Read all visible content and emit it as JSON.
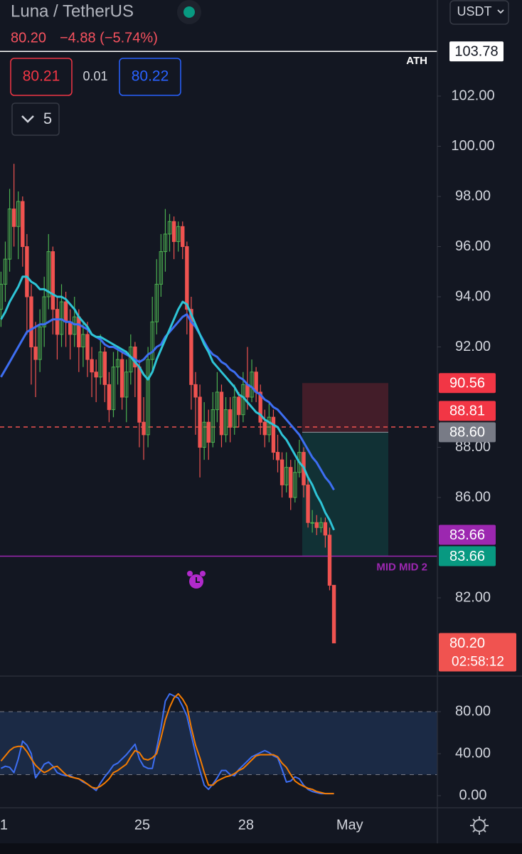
{
  "header": {
    "symbol": "Luna / TetherUS",
    "price": "80.20",
    "change": "−4.88 (−5.74%)",
    "bid": "80.21",
    "spread": "0.01",
    "ask": "80.22",
    "indicators": "5",
    "currency": "USDT"
  },
  "chart_data": [
    {
      "type": "candlestick",
      "up_color": "#4caf50",
      "down_color": "#ef5350",
      "categories": [
        "1",
        null,
        null,
        null,
        null,
        null,
        null,
        null,
        null,
        null,
        null,
        null,
        null,
        null,
        null,
        null,
        null,
        null,
        null,
        null,
        null,
        null,
        null,
        null,
        null,
        null,
        null,
        null,
        null,
        null,
        null,
        null,
        "25",
        null,
        null,
        null,
        null,
        null,
        null,
        null,
        null,
        null,
        null,
        null,
        null,
        null,
        null,
        null,
        null,
        null,
        null,
        null,
        null,
        null,
        null,
        null,
        "28",
        null,
        null,
        null,
        null,
        null,
        null,
        null,
        null,
        null,
        null,
        null,
        null,
        null,
        null,
        null,
        null,
        null,
        null,
        null,
        null,
        null,
        null,
        null,
        "May"
      ],
      "ohlc": [
        [
          93.5,
          95.0,
          92.8,
          94.5
        ],
        [
          94.5,
          96.2,
          93.8,
          95.5
        ],
        [
          95.5,
          98.3,
          95.0,
          97.5
        ],
        [
          97.5,
          99.3,
          96.0,
          96.8
        ],
        [
          96.8,
          98.2,
          95.5,
          97.8
        ],
        [
          97.8,
          98.0,
          95.2,
          96.0
        ],
        [
          96.0,
          96.5,
          92.5,
          94.0
        ],
        [
          94.0,
          94.5,
          90.5,
          92.0
        ],
        [
          92.0,
          93.0,
          90.0,
          91.5
        ],
        [
          91.5,
          93.5,
          91.0,
          92.8
        ],
        [
          92.8,
          94.8,
          92.0,
          94.0
        ],
        [
          94.0,
          96.5,
          93.5,
          95.8
        ],
        [
          95.8,
          96.0,
          92.5,
          93.5
        ],
        [
          93.5,
          94.0,
          91.5,
          92.5
        ],
        [
          92.5,
          94.5,
          92.0,
          93.8
        ],
        [
          93.8,
          94.2,
          92.0,
          93.0
        ],
        [
          93.0,
          93.5,
          91.5,
          92.5
        ],
        [
          92.5,
          94.0,
          92.0,
          93.2
        ],
        [
          93.2,
          93.5,
          91.0,
          92.0
        ],
        [
          92.0,
          93.0,
          91.2,
          92.5
        ],
        [
          92.5,
          93.0,
          90.8,
          91.5
        ],
        [
          91.5,
          92.0,
          90.0,
          91.0
        ],
        [
          91.0,
          91.5,
          89.8,
          90.8
        ],
        [
          90.8,
          92.5,
          90.5,
          91.8
        ],
        [
          91.8,
          92.0,
          89.8,
          90.5
        ],
        [
          90.5,
          91.0,
          89.0,
          89.5
        ],
        [
          89.5,
          91.8,
          89.2,
          91.2
        ],
        [
          91.2,
          92.0,
          90.5,
          91.5
        ],
        [
          91.5,
          91.8,
          89.5,
          90.0
        ],
        [
          90.0,
          91.5,
          89.0,
          91.0
        ],
        [
          91.0,
          92.5,
          90.5,
          92.0
        ],
        [
          92.0,
          92.2,
          90.0,
          91.2
        ],
        [
          91.2,
          91.5,
          88.0,
          89.0
        ],
        [
          89.0,
          90.0,
          87.5,
          88.5
        ],
        [
          88.5,
          92.0,
          88.0,
          91.5
        ],
        [
          91.5,
          94.0,
          91.0,
          93.0
        ],
        [
          93.0,
          95.5,
          92.5,
          94.5
        ],
        [
          94.5,
          96.5,
          94.0,
          95.8
        ],
        [
          95.8,
          97.5,
          95.0,
          96.5
        ],
        [
          96.5,
          97.3,
          95.8,
          97.0
        ],
        [
          97.0,
          97.2,
          95.5,
          96.2
        ],
        [
          96.2,
          97.0,
          95.8,
          96.8
        ],
        [
          96.8,
          97.0,
          95.5,
          96.0
        ],
        [
          96.0,
          96.2,
          92.5,
          93.5
        ],
        [
          93.5,
          94.0,
          89.5,
          90.5
        ],
        [
          90.5,
          91.0,
          88.5,
          90.0
        ],
        [
          90.0,
          90.5,
          86.8,
          88.0
        ],
        [
          88.0,
          89.8,
          87.5,
          89.0
        ],
        [
          89.0,
          89.5,
          87.5,
          88.2
        ],
        [
          88.2,
          90.2,
          88.0,
          89.5
        ],
        [
          89.5,
          91.0,
          89.0,
          90.2
        ],
        [
          90.2,
          90.5,
          88.0,
          88.5
        ],
        [
          88.5,
          90.0,
          88.2,
          89.5
        ],
        [
          89.5,
          90.0,
          88.2,
          88.8
        ],
        [
          88.8,
          90.5,
          88.5,
          90.0
        ],
        [
          90.0,
          90.2,
          88.8,
          89.3
        ],
        [
          89.3,
          91.0,
          89.0,
          90.5
        ],
        [
          90.5,
          92.0,
          89.5,
          90.0
        ],
        [
          90.0,
          91.5,
          89.8,
          91.0
        ],
        [
          91.0,
          91.2,
          89.8,
          90.2
        ],
        [
          90.2,
          90.5,
          88.5,
          89.0
        ],
        [
          89.0,
          89.5,
          88.0,
          88.5
        ],
        [
          88.5,
          89.8,
          88.2,
          89.2
        ],
        [
          89.2,
          89.5,
          87.5,
          87.8
        ],
        [
          87.8,
          88.5,
          87.0,
          87.5
        ],
        [
          87.5,
          87.8,
          86.0,
          86.5
        ],
        [
          86.5,
          87.8,
          86.2,
          87.2
        ],
        [
          87.2,
          87.5,
          85.5,
          86.0
        ],
        [
          86.0,
          87.5,
          85.8,
          87.0
        ],
        [
          87.0,
          88.3,
          86.8,
          87.8
        ],
        [
          87.8,
          88.0,
          86.0,
          86.5
        ],
        [
          86.5,
          86.8,
          84.8,
          85.0
        ],
        [
          85.0,
          85.5,
          84.6,
          85.0
        ],
        [
          85.0,
          85.3,
          84.5,
          84.8
        ],
        [
          84.8,
          85.2,
          84.6,
          85.0
        ],
        [
          85.0,
          85.2,
          84.0,
          84.5
        ],
        [
          84.5,
          84.8,
          82.3,
          82.5
        ],
        [
          82.5,
          82.5,
          80.2,
          80.2
        ],
        null,
        null,
        null
      ],
      "series": [
        {
          "color": "#3d6ef2",
          "values": [
            90.8,
            91.1,
            91.4,
            91.7,
            92.0,
            92.3,
            92.6,
            92.7,
            92.8,
            92.9,
            92.9,
            93.0,
            93.1,
            93.1,
            93.1,
            93.0,
            93.0,
            92.9,
            92.9,
            92.8,
            92.7,
            92.5,
            92.4,
            92.3,
            92.1,
            92.0,
            92.0,
            91.9,
            91.8,
            91.7,
            91.6,
            91.5,
            91.4,
            91.5,
            91.7,
            91.8,
            92.0,
            92.1,
            92.4,
            92.6,
            92.8,
            93.0,
            93.2,
            93.3,
            93.0,
            92.8,
            92.5,
            92.2,
            91.9,
            91.7,
            91.6,
            91.4,
            91.3,
            91.1,
            91.0,
            90.8,
            90.7,
            90.5,
            90.4,
            90.2,
            90.1,
            89.9,
            89.8,
            89.6,
            89.5,
            89.3,
            89.1,
            88.9,
            88.7,
            88.5,
            88.2,
            87.9,
            87.6,
            87.4,
            87.1,
            86.8,
            86.6,
            86.3,
            null,
            null,
            null
          ]
        },
        {
          "color": "#2ec4d6",
          "values": [
            93.1,
            93.4,
            93.8,
            94.1,
            94.4,
            94.8,
            94.8,
            94.6,
            94.5,
            94.3,
            94.3,
            94.2,
            94.1,
            94.0,
            94.0,
            93.9,
            93.7,
            93.5,
            93.2,
            93.0,
            92.8,
            92.5,
            92.4,
            92.4,
            92.3,
            92.2,
            92.1,
            92.0,
            91.9,
            91.8,
            91.6,
            91.4,
            91.2,
            90.9,
            90.7,
            91.0,
            91.5,
            91.9,
            92.3,
            92.7,
            93.1,
            93.5,
            93.8,
            93.7,
            93.3,
            92.9,
            92.5,
            92.1,
            91.8,
            91.4,
            91.2,
            91.0,
            90.8,
            90.6,
            90.4,
            90.1,
            90.0,
            89.8,
            89.6,
            89.4,
            89.3,
            89.1,
            89.0,
            88.9,
            88.8,
            88.5,
            88.3,
            88.0,
            87.7,
            87.4,
            87.2,
            86.8,
            86.5,
            86.1,
            85.8,
            85.4,
            85.1,
            84.7,
            null,
            null,
            null
          ]
        }
      ],
      "ylim": [
        78.88,
        105.83
      ],
      "yticks": [
        {
          "value": 82,
          "label": "82.00"
        },
        {
          "value": 86,
          "label": "86.00"
        },
        {
          "value": 88,
          "label": "88.00"
        },
        {
          "value": 92,
          "label": "92.00"
        },
        {
          "value": 94,
          "label": "94.00"
        },
        {
          "value": 96,
          "label": "96.00"
        },
        {
          "value": 98,
          "label": "98.00"
        },
        {
          "value": 100,
          "label": "100.00"
        },
        {
          "value": 102,
          "label": "102.00"
        }
      ],
      "lines": [
        {
          "value": 103.78,
          "label": "ATH",
          "color": "#ffffff"
        },
        {
          "value": 83.66,
          "label": "MID MID 2",
          "color": "#9c27b0"
        },
        {
          "value": 88.81,
          "color": "#ef5350",
          "dashed": true
        }
      ],
      "tags": [
        {
          "value": 103.78,
          "color": "#ffffff"
        },
        {
          "value": 90.56,
          "color": "#f23645"
        },
        {
          "value": 88.81,
          "color": "#f23645"
        },
        {
          "value": 88.6,
          "label": "88.60",
          "color": "#787b86"
        },
        {
          "value": 83.66,
          "color": "#9c27b0"
        },
        {
          "value": 83.66,
          "color": "#089981"
        },
        {
          "value": 80.2,
          "label": "80.20",
          "color": "#f05350",
          "countdown": "02:58:12"
        }
      ]
    },
    {
      "type": "line",
      "series": [
        {
          "color": "#3d6ef2",
          "values": [
            26,
            28,
            27,
            22,
            35,
            52,
            48,
            40,
            17,
            23,
            30,
            32,
            28,
            22,
            20,
            19,
            19,
            17,
            16,
            13,
            11,
            8,
            5,
            12,
            18,
            23,
            29,
            31,
            35,
            39,
            44,
            49,
            35,
            28,
            26,
            26,
            45,
            65,
            90,
            97,
            95,
            93,
            85,
            76,
            58,
            40,
            24,
            10,
            6,
            11,
            17,
            24,
            24,
            20,
            19,
            25,
            29,
            33,
            37,
            39,
            41,
            43,
            41,
            38,
            36,
            25,
            13,
            14,
            18,
            16,
            10,
            6,
            4,
            3,
            2,
            2,
            2,
            2,
            null,
            null,
            null
          ]
        },
        {
          "color": "#f57c00",
          "values": [
            33,
            38,
            43,
            46,
            47,
            47,
            42,
            35,
            29,
            25,
            22,
            24,
            27,
            28,
            24,
            20,
            18,
            17,
            16,
            14,
            11,
            8,
            7,
            9,
            12,
            16,
            22,
            24,
            27,
            30,
            37,
            43,
            41,
            35,
            34,
            36,
            40,
            55,
            72,
            84,
            93,
            97,
            92,
            85,
            65,
            48,
            36,
            22,
            10,
            10,
            14,
            16,
            18,
            19,
            21,
            24,
            26,
            30,
            34,
            38,
            39,
            39,
            39,
            39,
            37,
            31,
            27,
            20,
            14,
            11,
            9,
            7,
            6,
            4,
            3,
            2,
            2,
            2,
            null,
            null,
            null
          ]
        }
      ],
      "ylim": [
        -11.5,
        113.9
      ],
      "yticks": [
        {
          "value": 0,
          "label": "0.00"
        },
        {
          "value": 40,
          "label": "40.00"
        },
        {
          "value": 80,
          "label": "80.00"
        }
      ],
      "levels": [
        20,
        80
      ],
      "band_color": "#1b2a45"
    }
  ]
}
